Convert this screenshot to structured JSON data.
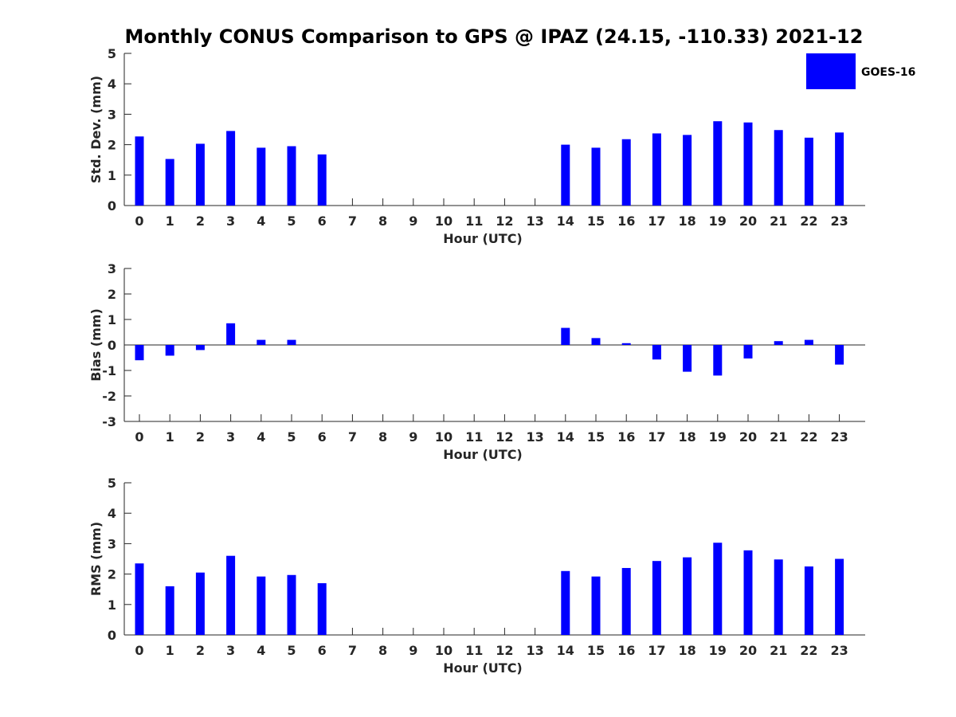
{
  "chart_data": {
    "title": "Monthly CONUS Comparison to GPS @ IPAZ (24.15, -110.33) 2021-12",
    "type": "bar",
    "legend": {
      "entries": [
        "GOES-16"
      ],
      "placement": "top-right",
      "color": "#0000FF"
    },
    "bar_color": "#0000FF",
    "categories": [
      "0",
      "1",
      "2",
      "3",
      "4",
      "5",
      "6",
      "7",
      "8",
      "9",
      "10",
      "11",
      "12",
      "13",
      "14",
      "15",
      "16",
      "17",
      "18",
      "19",
      "20",
      "21",
      "22",
      "23"
    ],
    "panels": [
      {
        "id": "stddev",
        "xlabel": "Hour (UTC)",
        "ylabel": "Std. Dev. (mm)",
        "ylim": [
          0,
          5
        ],
        "yticks": [
          "0",
          "1",
          "2",
          "3",
          "4",
          "5"
        ],
        "series": [
          {
            "name": "GOES-16",
            "values": [
              2.27,
              1.53,
              2.03,
              2.45,
              1.9,
              1.95,
              1.68,
              null,
              null,
              null,
              null,
              null,
              null,
              null,
              2.0,
              1.9,
              2.18,
              2.37,
              2.32,
              2.77,
              2.73,
              2.48,
              2.23,
              2.4
            ]
          }
        ]
      },
      {
        "id": "bias",
        "xlabel": "Hour (UTC)",
        "ylabel": "Bias (mm)",
        "ylim": [
          -3,
          3
        ],
        "yticks": [
          "-3",
          "-2",
          "-1",
          "0",
          "1",
          "2",
          "3"
        ],
        "series": [
          {
            "name": "GOES-16",
            "values": [
              -0.6,
              -0.42,
              -0.2,
              0.85,
              0.2,
              0.2,
              0.0,
              null,
              null,
              null,
              null,
              null,
              null,
              null,
              0.67,
              0.27,
              0.07,
              -0.57,
              -1.05,
              -1.2,
              -0.53,
              0.15,
              0.2,
              -0.77
            ]
          }
        ]
      },
      {
        "id": "rms",
        "xlabel": "Hour (UTC)",
        "ylabel": "RMS (mm)",
        "ylim": [
          0,
          5
        ],
        "yticks": [
          "0",
          "1",
          "2",
          "3",
          "4",
          "5"
        ],
        "series": [
          {
            "name": "GOES-16",
            "values": [
              2.35,
              1.6,
              2.05,
              2.6,
              1.92,
              1.97,
              1.7,
              null,
              null,
              null,
              null,
              null,
              null,
              null,
              2.1,
              1.92,
              2.2,
              2.43,
              2.55,
              3.03,
              2.78,
              2.48,
              2.25,
              2.5
            ]
          }
        ]
      }
    ]
  }
}
